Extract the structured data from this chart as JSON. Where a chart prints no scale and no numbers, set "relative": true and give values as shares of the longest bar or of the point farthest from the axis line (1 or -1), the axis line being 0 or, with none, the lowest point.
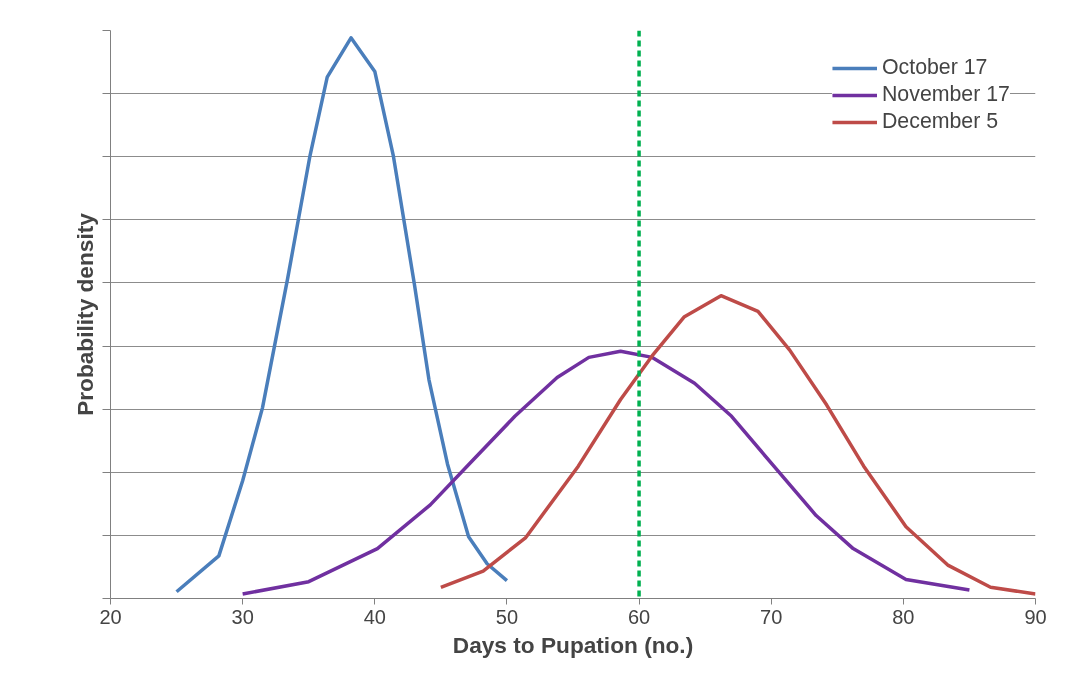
{
  "chart_data": {
    "type": "line",
    "relative": true,
    "xlabel": "Days to Pupation (no.)",
    "ylabel": "Probability density",
    "xlim": [
      20,
      90
    ],
    "xticks": [
      20,
      30,
      40,
      50,
      60,
      70,
      80,
      90
    ],
    "grid": "y",
    "legend": "top right",
    "line_style": "solid",
    "marker": "none",
    "series": [
      {
        "name": "October 17",
        "color": "#4a7ebb",
        "x": [
          25,
          28.2,
          30,
          31.5,
          33.4,
          35.1,
          36.4,
          38.2,
          40,
          41.4,
          43,
          44.1,
          45.5,
          47.1,
          48.5,
          50
        ],
        "values": [
          0.012,
          0.076,
          0.21,
          0.34,
          0.57,
          0.79,
          0.93,
          1.0,
          0.94,
          0.79,
          0.56,
          0.39,
          0.24,
          0.11,
          0.062,
          0.032
        ]
      },
      {
        "name": "November 17",
        "color": "#7030a0",
        "x": [
          30,
          35,
          40.2,
          44.2,
          47.4,
          50.6,
          53.8,
          56.2,
          58.6,
          61,
          64.2,
          67,
          70.2,
          73.4,
          76.2,
          80.2,
          85
        ],
        "values": [
          0.008,
          0.03,
          0.089,
          0.167,
          0.246,
          0.325,
          0.394,
          0.43,
          0.441,
          0.43,
          0.384,
          0.325,
          0.236,
          0.148,
          0.089,
          0.034,
          0.015
        ]
      },
      {
        "name": "December 5",
        "color": "#be4b48",
        "x": [
          45,
          48.2,
          51.4,
          55.4,
          58.6,
          61,
          63.4,
          66.2,
          69,
          71.4,
          74.2,
          77,
          80.2,
          83.4,
          86.6,
          90
        ],
        "values": [
          0.02,
          0.049,
          0.108,
          0.236,
          0.355,
          0.433,
          0.502,
          0.54,
          0.512,
          0.443,
          0.345,
          0.236,
          0.128,
          0.059,
          0.02,
          0.008
        ]
      }
    ],
    "ref_lines": [
      {
        "axis": "x",
        "value": 60,
        "color": "#00b050",
        "line_style": "dashed"
      }
    ]
  }
}
